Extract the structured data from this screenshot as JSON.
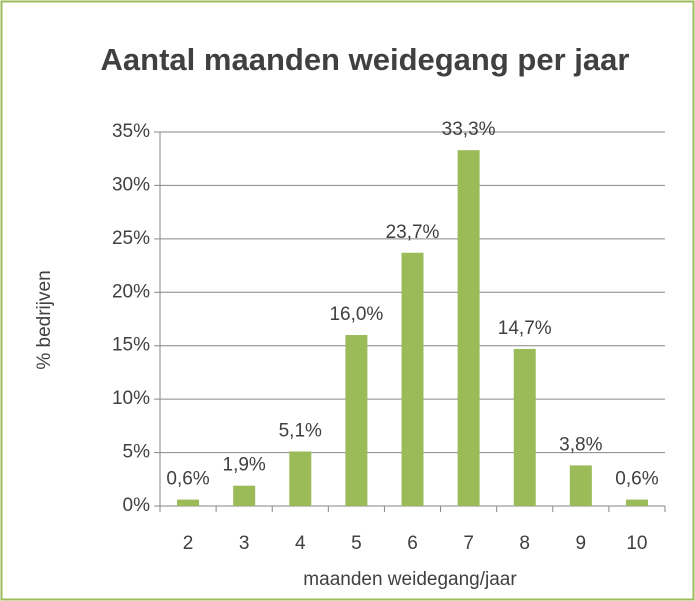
{
  "chart_data": {
    "type": "bar",
    "title": "Aantal maanden weidegang per jaar",
    "x_label": "maanden weidegang/jaar",
    "y_label": "% bedrijven",
    "categories": [
      "2",
      "3",
      "4",
      "5",
      "6",
      "7",
      "8",
      "9",
      "10"
    ],
    "values": [
      0.6,
      1.9,
      5.1,
      16.0,
      23.7,
      33.3,
      14.7,
      3.8,
      0.6
    ],
    "value_labels": [
      "0,6%",
      "1,9%",
      "5,1%",
      "16,0%",
      "23,7%",
      "33,3%",
      "14,7%",
      "3,8%",
      "0,6%"
    ],
    "color": "#9bbb59",
    "ylim": [
      0,
      35
    ],
    "yticks": [
      {
        "value": 0,
        "label": "0%"
      },
      {
        "value": 5,
        "label": "5%"
      },
      {
        "value": 10,
        "label": "10%"
      },
      {
        "value": 15,
        "label": "15%"
      },
      {
        "value": 20,
        "label": "20%"
      },
      {
        "value": 25,
        "label": "25%"
      },
      {
        "value": 30,
        "label": "30%"
      },
      {
        "value": 35,
        "label": "35%"
      }
    ],
    "grid": true
  }
}
